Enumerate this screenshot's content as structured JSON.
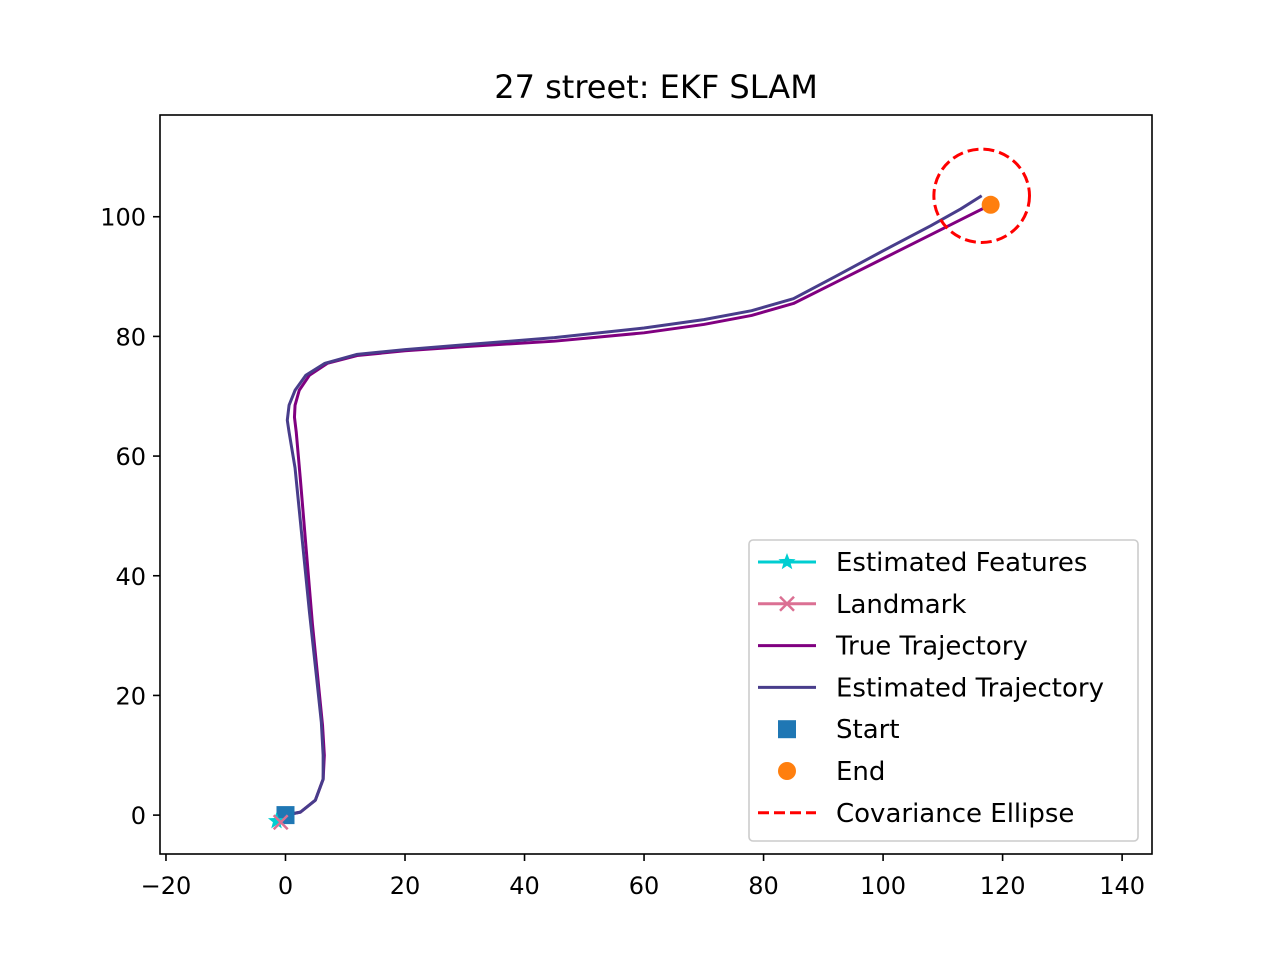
{
  "chart_data": {
    "type": "line",
    "title": "27 street: EKF SLAM",
    "xlabel": "",
    "ylabel": "",
    "xlim": [
      -21,
      145
    ],
    "ylim": [
      -6.5,
      117
    ],
    "xticks": [
      -20,
      0,
      20,
      40,
      60,
      80,
      100,
      120,
      140
    ],
    "xtick_labels": [
      "−20",
      "0",
      "20",
      "40",
      "60",
      "80",
      "100",
      "120",
      "140"
    ],
    "yticks": [
      0,
      20,
      40,
      60,
      80,
      100
    ],
    "ytick_labels": [
      "0",
      "20",
      "40",
      "60",
      "80",
      "100"
    ],
    "grid": false,
    "legend_position": "lower right",
    "series": [
      {
        "name": "True Trajectory",
        "kind": "line",
        "color": "#800080",
        "x": [
          0.0,
          2.5,
          5.0,
          6.3,
          6.5,
          6.2,
          5.5,
          4.5,
          3.5,
          2.5,
          1.8,
          1.5,
          1.6,
          2.3,
          4.0,
          7.0,
          12.0,
          20.0,
          30.0,
          45.0,
          60.0,
          70.0,
          78.0,
          85.0,
          92.0,
          100.0,
          108.0,
          114.0,
          118.0
        ],
        "y": [
          0.0,
          0.5,
          2.5,
          6.0,
          10.0,
          15.0,
          22.0,
          32.0,
          44.0,
          56.0,
          64.0,
          66.5,
          68.5,
          71.0,
          73.5,
          75.5,
          76.8,
          77.6,
          78.3,
          79.2,
          80.6,
          82.0,
          83.5,
          85.5,
          89.0,
          93.0,
          97.0,
          100.0,
          102.0
        ]
      },
      {
        "name": "Estimated Trajectory",
        "kind": "line",
        "color": "#483D8B",
        "x": [
          0.0,
          2.5,
          5.0,
          6.3,
          6.3,
          6.0,
          5.2,
          4.0,
          2.8,
          1.6,
          0.6,
          0.3,
          0.6,
          1.6,
          3.4,
          6.6,
          12.0,
          20.0,
          30.0,
          45.0,
          60.0,
          70.0,
          78.0,
          85.0,
          92.0,
          100.0,
          108.0,
          113.0,
          116.5
        ],
        "y": [
          0.0,
          0.5,
          2.5,
          6.0,
          10.0,
          15.5,
          23.0,
          34.0,
          46.0,
          58.0,
          64.0,
          66.0,
          68.5,
          71.0,
          73.5,
          75.5,
          77.0,
          77.8,
          78.6,
          79.8,
          81.4,
          82.8,
          84.3,
          86.3,
          90.0,
          94.3,
          98.5,
          101.3,
          103.5
        ]
      },
      {
        "name": "Estimated Features",
        "kind": "marker",
        "marker": "star",
        "color": "#00CED1",
        "x": [
          -1.5
        ],
        "y": [
          -1.0
        ]
      },
      {
        "name": "Landmark",
        "kind": "marker",
        "marker": "x",
        "color": "#DB7093",
        "x": [
          -0.8
        ],
        "y": [
          -1.2
        ]
      },
      {
        "name": "Start",
        "kind": "marker",
        "marker": "square",
        "color": "#1F77B4",
        "x": [
          0
        ],
        "y": [
          0
        ]
      },
      {
        "name": "End",
        "kind": "marker",
        "marker": "circle",
        "color": "#FF7F0E",
        "x": [
          118
        ],
        "y": [
          102
        ]
      },
      {
        "name": "Covariance Ellipse",
        "kind": "ellipse",
        "color": "#FF0000",
        "center": [
          116.5,
          103.5
        ],
        "rx": 8,
        "ry": 7.8
      }
    ],
    "legend": [
      "Estimated Features",
      "Landmark",
      "True Trajectory",
      "Estimated Trajectory",
      "Start",
      "End",
      "Covariance Ellipse"
    ]
  }
}
